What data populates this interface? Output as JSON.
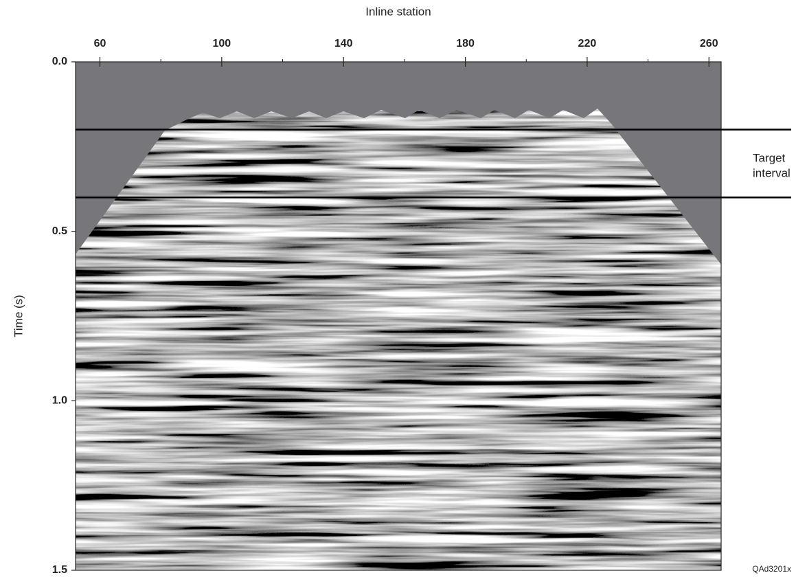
{
  "chart_data": {
    "type": "seismic",
    "xlabel": "Inline station",
    "ylabel": "Time (s)",
    "xlim": [
      52,
      264
    ],
    "xticks": [
      60,
      100,
      140,
      180,
      220,
      260
    ],
    "xminorticks": [
      80,
      120,
      160,
      200,
      240
    ],
    "ylim": [
      0,
      1.5
    ],
    "yticks": [
      {
        "value": 0,
        "label": "0.0"
      },
      0.5,
      {
        "value": 1,
        "label": "1.0"
      },
      1.5
    ],
    "hlines": [
      0.2,
      0.4
    ],
    "annotation": [
      "Target",
      "interval"
    ],
    "credit": "QAd3201x"
  }
}
